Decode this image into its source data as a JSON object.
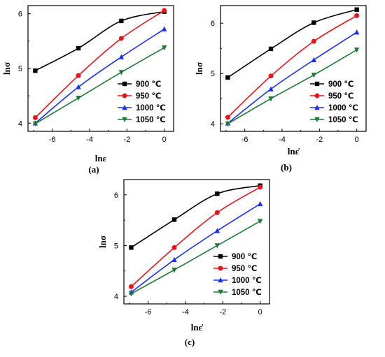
{
  "chart_data": [
    {
      "type": "line",
      "panel_label": "(a)",
      "xlabel": "lnε",
      "ylabel": "lnσ",
      "xlim": [
        -7.3,
        0.5
      ],
      "ylim": [
        3.85,
        6.15
      ],
      "xticks": [
        -6,
        -4,
        -2,
        0
      ],
      "yticks": [
        4,
        5,
        6
      ],
      "legend_position": "bottom-right",
      "series": [
        {
          "name": "900 ℃",
          "color": "#000000",
          "marker": "square",
          "x": [
            -6.91,
            -4.6,
            -2.3,
            0
          ],
          "y": [
            4.96,
            5.37,
            5.87,
            6.04
          ]
        },
        {
          "name": "950 ℃",
          "color": "#e8141c",
          "marker": "circle",
          "x": [
            -6.91,
            -4.6,
            -2.3,
            0
          ],
          "y": [
            4.1,
            4.87,
            5.55,
            6.06
          ]
        },
        {
          "name": "1000 ℃",
          "color": "#1a2ef0",
          "marker": "triangle-up",
          "x": [
            -6.91,
            -4.6,
            -2.3,
            0
          ],
          "y": [
            4.0,
            4.66,
            5.21,
            5.72
          ]
        },
        {
          "name": "1050 ℃",
          "color": "#1e7a36",
          "marker": "triangle-down",
          "x": [
            -6.91,
            -4.6,
            -2.3,
            0
          ],
          "y": [
            3.99,
            4.46,
            4.93,
            5.38
          ]
        }
      ]
    },
    {
      "type": "line",
      "panel_label": "(b)",
      "xlabel": "lnε̇",
      "ylabel": "lnσ",
      "xlim": [
        -7.3,
        0.5
      ],
      "ylim": [
        3.85,
        6.35
      ],
      "xticks": [
        -6,
        -4,
        -2,
        0
      ],
      "yticks": [
        4,
        5,
        6
      ],
      "legend_position": "bottom-right",
      "series": [
        {
          "name": "900 ℃",
          "color": "#000000",
          "marker": "square",
          "x": [
            -6.91,
            -4.6,
            -2.3,
            0
          ],
          "y": [
            4.92,
            5.49,
            6.01,
            6.27
          ]
        },
        {
          "name": "950 ℃",
          "color": "#e8141c",
          "marker": "circle",
          "x": [
            -6.91,
            -4.6,
            -2.3,
            0
          ],
          "y": [
            4.13,
            4.95,
            5.64,
            6.15
          ]
        },
        {
          "name": "1000 ℃",
          "color": "#1a2ef0",
          "marker": "triangle-up",
          "x": [
            -6.91,
            -4.6,
            -2.3,
            0
          ],
          "y": [
            4.01,
            4.69,
            5.27,
            5.82
          ]
        },
        {
          "name": "1050 ℃",
          "color": "#1e7a36",
          "marker": "triangle-down",
          "x": [
            -6.91,
            -4.6,
            -2.3,
            0
          ],
          "y": [
            4.0,
            4.5,
            4.97,
            5.47
          ]
        }
      ]
    },
    {
      "type": "line",
      "panel_label": "(c)",
      "xlabel": "lnε̇",
      "ylabel": "lnσ",
      "xlim": [
        -7.3,
        0.5
      ],
      "ylim": [
        3.85,
        6.3
      ],
      "xticks": [
        -6,
        -4,
        -2,
        0
      ],
      "yticks": [
        4,
        5,
        6
      ],
      "legend_position": "bottom-right",
      "series": [
        {
          "name": "900 ℃",
          "color": "#000000",
          "marker": "square",
          "x": [
            -6.91,
            -4.6,
            -2.3,
            0
          ],
          "y": [
            4.96,
            5.51,
            6.02,
            6.18
          ]
        },
        {
          "name": "950 ℃",
          "color": "#e8141c",
          "marker": "circle",
          "x": [
            -6.91,
            -4.6,
            -2.3,
            0
          ],
          "y": [
            4.19,
            4.96,
            5.65,
            6.15
          ]
        },
        {
          "name": "1000 ℃",
          "color": "#1a2ef0",
          "marker": "triangle-up",
          "x": [
            -6.91,
            -4.6,
            -2.3,
            0
          ],
          "y": [
            4.08,
            4.72,
            5.29,
            5.82
          ]
        },
        {
          "name": "1050 ℃",
          "color": "#1e7a36",
          "marker": "triangle-down",
          "x": [
            -6.91,
            -4.6,
            -2.3,
            0
          ],
          "y": [
            4.05,
            4.52,
            5.0,
            5.48
          ]
        }
      ]
    }
  ]
}
